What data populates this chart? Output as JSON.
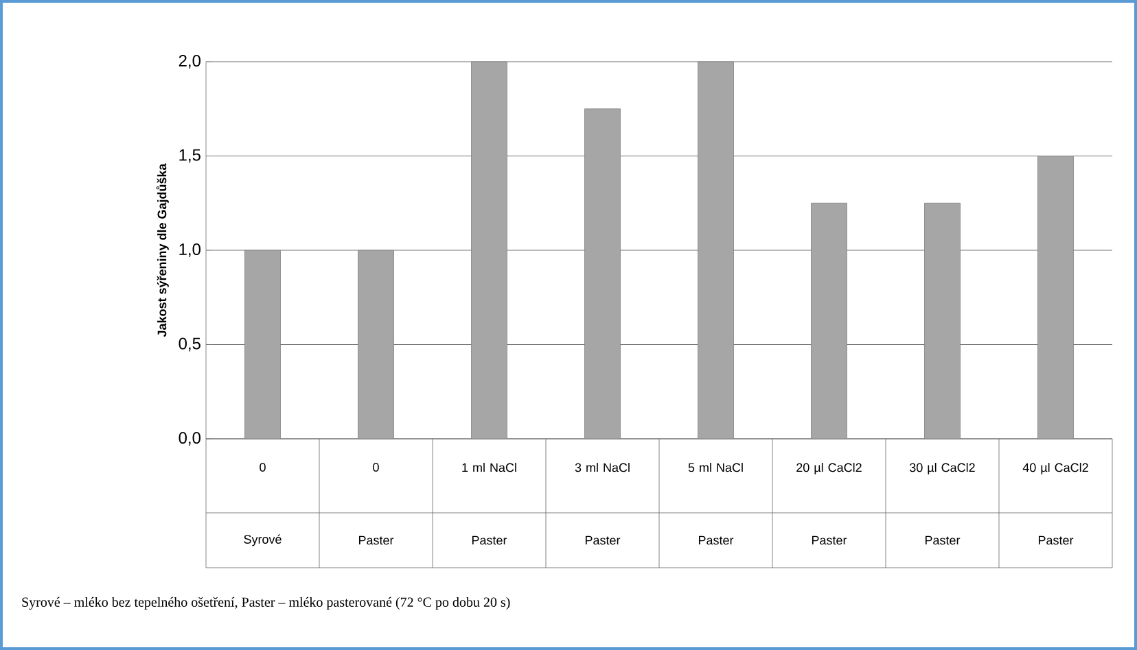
{
  "chart_data": {
    "type": "bar",
    "ylabel": "Jakost sýřeniny dle Gajdůška",
    "categories": [
      "0",
      "0",
      "1 ml NaCl",
      "3 ml NaCl",
      "5 ml NaCl",
      "20 µl CaCl2",
      "30 µl CaCl2",
      "40 µl CaCl2"
    ],
    "values": [
      1.0,
      1.0,
      2.0,
      1.75,
      2.0,
      1.25,
      1.25,
      1.5
    ],
    "color": "#a6a6a6",
    "ylim": [
      0,
      2
    ],
    "yticks": [
      {
        "value": 0,
        "label": "0,0"
      },
      {
        "value": 0.5,
        "label": "0,5"
      },
      {
        "value": 1,
        "label": "1,0"
      },
      {
        "value": 1.5,
        "label": "1,5"
      },
      {
        "value": 2,
        "label": "2,0"
      }
    ],
    "grid": "y",
    "annotations": [
      "Syrové",
      "Paster",
      "Paster",
      "Paster",
      "Paster",
      "Paster",
      "Paster",
      "Paster",
      "Syrové – mléko bez tepelného ošetření, Paster – mléko pasterované (72 °C po dobu 20 s)"
    ]
  }
}
